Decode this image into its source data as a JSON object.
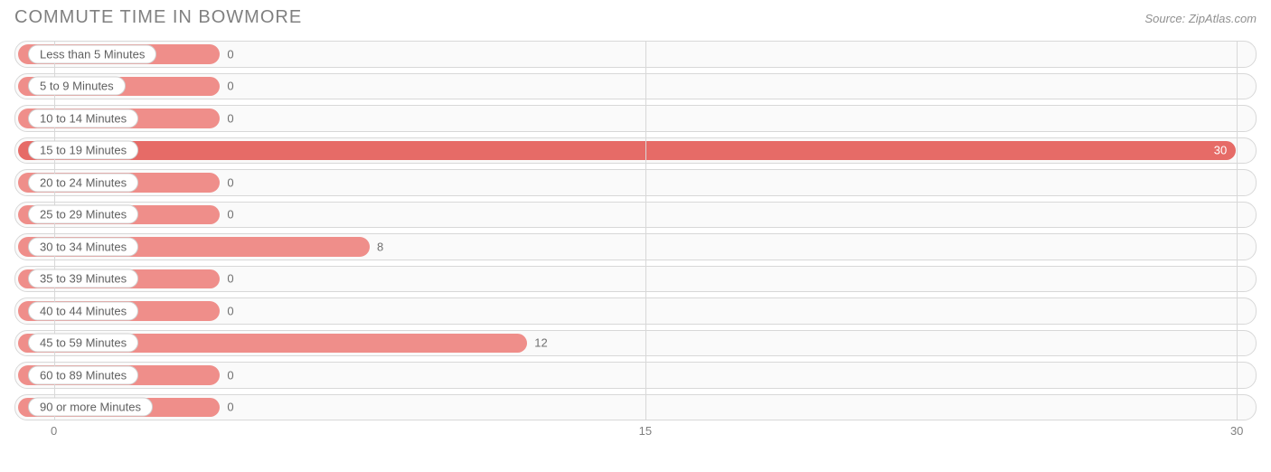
{
  "chart": {
    "type": "bar-horizontal",
    "title": "COMMUTE TIME IN BOWMORE",
    "source": "Source: ZipAtlas.com",
    "background_color": "#ffffff",
    "track_bg": "#fafafa",
    "track_border": "#d8d8d8",
    "bar_color": "#ef8e8a",
    "bar_color_strong": "#e66b67",
    "pill_bg": "#ffffff",
    "pill_border": "#d0d0d0",
    "text_color": "#707070",
    "title_color": "#808080",
    "grid_color": "#d8d8d8",
    "bar_radius": 11,
    "track_radius": 14,
    "title_fontsize": 20,
    "label_fontsize": 13,
    "value_fontsize": 13,
    "xmin": -1,
    "xmax": 30.5,
    "xticks": [
      0,
      15,
      30
    ],
    "zero_bar_pct": 16.5,
    "categories": [
      {
        "label": "Less than 5 Minutes",
        "value": 0
      },
      {
        "label": "5 to 9 Minutes",
        "value": 0
      },
      {
        "label": "10 to 14 Minutes",
        "value": 0
      },
      {
        "label": "15 to 19 Minutes",
        "value": 30
      },
      {
        "label": "20 to 24 Minutes",
        "value": 0
      },
      {
        "label": "25 to 29 Minutes",
        "value": 0
      },
      {
        "label": "30 to 34 Minutes",
        "value": 8
      },
      {
        "label": "35 to 39 Minutes",
        "value": 0
      },
      {
        "label": "40 to 44 Minutes",
        "value": 0
      },
      {
        "label": "45 to 59 Minutes",
        "value": 12
      },
      {
        "label": "60 to 89 Minutes",
        "value": 0
      },
      {
        "label": "90 or more Minutes",
        "value": 0
      }
    ]
  }
}
